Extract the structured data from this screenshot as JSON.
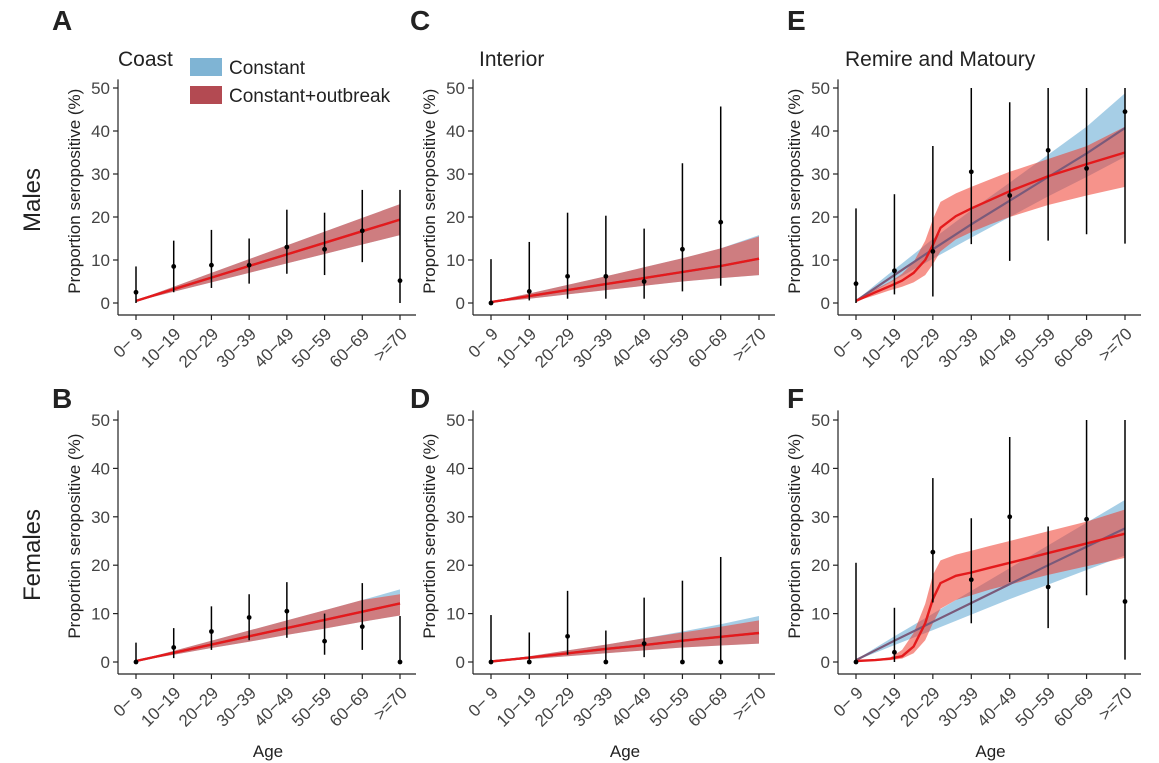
{
  "figure": {
    "row_labels": [
      "Males",
      "Females"
    ],
    "legend": [
      {
        "label": "Constant",
        "color": "#7fb4d4"
      },
      {
        "label": "Constant+outbreak",
        "color": "#b34a52"
      }
    ],
    "ylabel": "Proportion seropositive (%)",
    "xlabel": "Age"
  },
  "colors": {
    "constant_band": "#6baed6",
    "outbreak_band": "#ef3b2c",
    "outbreak_line": "#e41a1c",
    "constant_line": "#7a5a7a",
    "points": "#000000"
  },
  "chart_data": [
    {
      "panel": "A",
      "title": "Coast",
      "row": "Males",
      "type": "line",
      "categories": [
        "0− 9",
        "10−19",
        "20−29",
        "30−39",
        "40−49",
        "50−59",
        "60−69",
        ">=70"
      ],
      "ylim": [
        0,
        52
      ],
      "yticks": [
        0,
        10,
        20,
        30,
        40,
        50
      ],
      "observed": [
        {
          "y": 2.5,
          "lo": 0,
          "hi": 8.5
        },
        {
          "y": 8.5,
          "lo": 2.5,
          "hi": 14.5
        },
        {
          "y": 8.8,
          "lo": 3.5,
          "hi": 17
        },
        {
          "y": 8.8,
          "lo": 4.5,
          "hi": 15
        },
        {
          "y": 13,
          "lo": 6.8,
          "hi": 21.7
        },
        {
          "y": 12.5,
          "lo": 6.5,
          "hi": 21
        },
        {
          "y": 16.8,
          "lo": 9.5,
          "hi": 26.3
        },
        {
          "y": 5.2,
          "lo": 0,
          "hi": 26.3
        }
      ],
      "constant": {
        "fit": [
          0.5,
          3.2,
          5.9,
          8.6,
          11.3,
          14.0,
          16.7,
          19.4
        ],
        "lo": [
          0.4,
          2.6,
          4.8,
          7.0,
          9.2,
          11.4,
          13.6,
          15.8
        ],
        "hi": [
          0.6,
          3.8,
          7.0,
          10.2,
          13.4,
          16.6,
          19.8,
          23.0
        ]
      },
      "outbreak": {
        "fit": [
          0.5,
          3.2,
          5.9,
          8.6,
          11.3,
          14.0,
          16.7,
          19.4
        ],
        "lo": [
          0.4,
          2.6,
          4.8,
          7.0,
          9.2,
          11.4,
          13.6,
          15.8
        ],
        "hi": [
          0.6,
          3.8,
          7.0,
          10.2,
          13.4,
          16.6,
          19.8,
          23.0
        ]
      }
    },
    {
      "panel": "B",
      "title": "",
      "row": "Females",
      "type": "line",
      "categories": [
        "0− 9",
        "10−19",
        "20−29",
        "30−39",
        "40−49",
        "50−59",
        "60−69",
        ">=70"
      ],
      "ylim": [
        0,
        52
      ],
      "yticks": [
        0,
        10,
        20,
        30,
        40,
        50
      ],
      "observed": [
        {
          "y": 0,
          "lo": 0,
          "hi": 4
        },
        {
          "y": 3,
          "lo": 0.8,
          "hi": 7
        },
        {
          "y": 6.3,
          "lo": 2.5,
          "hi": 11.5
        },
        {
          "y": 9.2,
          "lo": 4.5,
          "hi": 14
        },
        {
          "y": 10.5,
          "lo": 5,
          "hi": 16.5
        },
        {
          "y": 4.3,
          "lo": 1.5,
          "hi": 10
        },
        {
          "y": 7.3,
          "lo": 2.5,
          "hi": 16.3
        },
        {
          "y": 0,
          "lo": 0,
          "hi": 9.5
        }
      ],
      "constant": {
        "fit": [
          0.2,
          1.9,
          3.6,
          5.3,
          7.0,
          8.7,
          10.4,
          12.1
        ],
        "lo": [
          0.15,
          1.5,
          2.9,
          4.2,
          5.6,
          6.9,
          8.3,
          9.6
        ],
        "hi": [
          0.25,
          2.3,
          4.4,
          6.5,
          8.6,
          10.7,
          12.8,
          15.0
        ]
      },
      "outbreak": {
        "fit": [
          0.2,
          1.9,
          3.6,
          5.3,
          7.0,
          8.7,
          10.4,
          12.1
        ],
        "lo": [
          0.15,
          1.5,
          2.9,
          4.2,
          5.6,
          6.9,
          8.3,
          9.6
        ],
        "hi": [
          0.25,
          2.3,
          4.4,
          6.5,
          8.6,
          10.7,
          12.8,
          14.0
        ]
      }
    },
    {
      "panel": "C",
      "title": "Interior",
      "row": "Males",
      "type": "line",
      "categories": [
        "0− 9",
        "10−19",
        "20−29",
        "30−39",
        "40−49",
        "50−59",
        "60−69",
        ">=70"
      ],
      "ylim": [
        0,
        52
      ],
      "yticks": [
        0,
        10,
        20,
        30,
        40,
        50
      ],
      "observed": [
        {
          "y": 0,
          "lo": 0,
          "hi": 10.2
        },
        {
          "y": 2.7,
          "lo": 0.6,
          "hi": 14.2
        },
        {
          "y": 6.2,
          "lo": 1,
          "hi": 21
        },
        {
          "y": 6.2,
          "lo": 1,
          "hi": 20.3
        },
        {
          "y": 5,
          "lo": 1,
          "hi": 17.3
        },
        {
          "y": 12.5,
          "lo": 2.7,
          "hi": 32.5
        },
        {
          "y": 18.8,
          "lo": 4,
          "hi": 45.7
        },
        {
          "y": 0,
          "lo": 0,
          "hi": 0
        }
      ],
      "constant": {
        "fit": [
          0.2,
          1.6,
          3.0,
          4.4,
          5.8,
          7.2,
          8.6,
          10.3
        ],
        "lo": [
          0.1,
          1.0,
          2.0,
          3.0,
          4.0,
          5.0,
          5.8,
          6.5
        ],
        "hi": [
          0.3,
          2.2,
          4.2,
          6.2,
          8.3,
          10.4,
          12.7,
          15.8
        ]
      },
      "outbreak": {
        "fit": [
          0.2,
          1.6,
          3.0,
          4.4,
          5.8,
          7.2,
          8.6,
          10.3
        ],
        "lo": [
          0.1,
          1.0,
          2.0,
          3.0,
          4.0,
          5.0,
          5.8,
          6.5
        ],
        "hi": [
          0.3,
          2.2,
          4.2,
          6.2,
          8.3,
          10.4,
          12.7,
          15.5
        ]
      }
    },
    {
      "panel": "D",
      "title": "",
      "row": "Females",
      "type": "line",
      "categories": [
        "0− 9",
        "10−19",
        "20−29",
        "30−39",
        "40−49",
        "50−59",
        "60−69",
        ">=70"
      ],
      "ylim": [
        0,
        52
      ],
      "yticks": [
        0,
        10,
        20,
        30,
        40,
        50
      ],
      "observed": [
        {
          "y": 0,
          "lo": 0,
          "hi": 9.7
        },
        {
          "y": 0,
          "lo": 0,
          "hi": 6.1
        },
        {
          "y": 5.3,
          "lo": 1.5,
          "hi": 14.7
        },
        {
          "y": 0,
          "lo": 0,
          "hi": 6.5
        },
        {
          "y": 3.8,
          "lo": 1,
          "hi": 13.3
        },
        {
          "y": 0,
          "lo": 0,
          "hi": 16.8
        },
        {
          "y": 0,
          "lo": 0,
          "hi": 21.7
        },
        {
          "y": 0,
          "lo": 0,
          "hi": 0
        }
      ],
      "constant": {
        "fit": [
          0.1,
          0.9,
          1.8,
          2.7,
          3.5,
          4.4,
          5.2,
          6.0
        ],
        "lo": [
          0.05,
          0.6,
          1.2,
          1.8,
          2.4,
          3.0,
          3.4,
          3.8
        ],
        "hi": [
          0.15,
          1.2,
          2.4,
          3.6,
          4.9,
          6.3,
          7.8,
          9.5
        ]
      },
      "outbreak": {
        "fit": [
          0.1,
          0.9,
          1.8,
          2.7,
          3.5,
          4.4,
          5.2,
          6.0
        ],
        "lo": [
          0.05,
          0.6,
          1.2,
          1.8,
          2.4,
          3.0,
          3.4,
          3.8
        ],
        "hi": [
          0.15,
          1.2,
          2.4,
          3.6,
          4.9,
          6.1,
          7.3,
          8.6
        ]
      }
    },
    {
      "panel": "E",
      "title": "Remire and Matoury",
      "row": "Males",
      "type": "line",
      "categories": [
        "0− 9",
        "10−19",
        "20−29",
        "30−39",
        "40−49",
        "50−59",
        "60−69",
        ">=70"
      ],
      "ylim": [
        0,
        52
      ],
      "yticks": [
        0,
        10,
        20,
        30,
        40,
        50
      ],
      "observed": [
        {
          "y": 4.5,
          "lo": 0,
          "hi": 22
        },
        {
          "y": 7.5,
          "lo": 2,
          "hi": 25.3
        },
        {
          "y": 12,
          "lo": 1.5,
          "hi": 36.5
        },
        {
          "y": 30.5,
          "lo": 13.7,
          "hi": 50
        },
        {
          "y": 25,
          "lo": 9.8,
          "hi": 46.7
        },
        {
          "y": 35.5,
          "lo": 14.5,
          "hi": 50
        },
        {
          "y": 31.3,
          "lo": 16,
          "hi": 50
        },
        {
          "y": 44.5,
          "lo": 13.8,
          "hi": 50
        }
      ],
      "constant": {
        "fit": [
          0.5,
          6.5,
          12.5,
          18.3,
          23.8,
          29.3,
          34.8,
          40.7
        ],
        "lo": [
          0.4,
          5.3,
          10.3,
          15.2,
          20.0,
          24.8,
          29.3,
          34.0
        ],
        "hi": [
          0.6,
          7.8,
          14.9,
          21.6,
          28.0,
          34.5,
          41.0,
          48.8
        ]
      },
      "outbreak": {
        "x": [
          0,
          0.5,
          0.9,
          1.2,
          1.5,
          1.8,
          2.0,
          2.2,
          2.6,
          3.0,
          3.5,
          4.0,
          5.0,
          6.0,
          7.0
        ],
        "fit": [
          0.5,
          2.5,
          4.0,
          5.2,
          7.0,
          10.0,
          13.5,
          17.5,
          20.2,
          22.0,
          24.0,
          26.0,
          29.5,
          32.3,
          35.0
        ],
        "lo": [
          0.4,
          1.8,
          3.0,
          3.8,
          4.8,
          6.5,
          9.0,
          12.0,
          14.8,
          16.5,
          18.3,
          20.0,
          22.8,
          25.0,
          27.0
        ],
        "hi": [
          0.6,
          3.2,
          5.0,
          6.8,
          9.5,
          14.5,
          19.5,
          23.5,
          25.5,
          27.0,
          28.8,
          30.5,
          33.5,
          36.5,
          41.0
        ]
      }
    },
    {
      "panel": "F",
      "title": "",
      "row": "Females",
      "type": "line",
      "categories": [
        "0− 9",
        "10−19",
        "20−29",
        "30−39",
        "40−49",
        "50−59",
        "60−69",
        ">=70"
      ],
      "ylim": [
        0,
        52
      ],
      "yticks": [
        0,
        10,
        20,
        30,
        40,
        50
      ],
      "observed": [
        {
          "y": 0,
          "lo": 0,
          "hi": 20.5
        },
        {
          "y": 2,
          "lo": 0,
          "hi": 11.2
        },
        {
          "y": 22.7,
          "lo": 12.3,
          "hi": 38
        },
        {
          "y": 17,
          "lo": 8,
          "hi": 29.7
        },
        {
          "y": 30,
          "lo": 16.5,
          "hi": 46.5
        },
        {
          "y": 15.5,
          "lo": 7,
          "hi": 28
        },
        {
          "y": 29.5,
          "lo": 13.8,
          "hi": 50
        },
        {
          "y": 12.5,
          "lo": 0.5,
          "hi": 50
        }
      ],
      "constant": {
        "fit": [
          0.4,
          4.4,
          8.3,
          12.2,
          16.1,
          20.0,
          23.8,
          27.6
        ],
        "lo": [
          0.3,
          3.5,
          6.6,
          9.8,
          13.0,
          16.0,
          19.0,
          22.0
        ],
        "hi": [
          0.5,
          5.3,
          10.0,
          14.7,
          19.4,
          24.1,
          28.8,
          33.5
        ]
      },
      "outbreak": {
        "x": [
          0,
          0.5,
          0.9,
          1.2,
          1.5,
          1.8,
          2.0,
          2.2,
          2.6,
          3.0,
          3.5,
          4.0,
          5.0,
          6.0,
          7.0
        ],
        "fit": [
          0.2,
          0.4,
          0.7,
          1.2,
          3.2,
          8.0,
          13.0,
          16.3,
          17.8,
          18.5,
          19.5,
          20.5,
          22.5,
          24.5,
          26.5
        ],
        "lo": [
          0.1,
          0.2,
          0.4,
          0.7,
          1.8,
          4.5,
          8.0,
          11.0,
          12.8,
          13.8,
          15.0,
          16.0,
          18.0,
          19.8,
          21.5
        ],
        "hi": [
          0.3,
          0.6,
          1.0,
          2.5,
          6.0,
          12.0,
          18.0,
          21.0,
          22.2,
          23.0,
          24.0,
          25.0,
          27.0,
          29.0,
          31.5
        ]
      }
    }
  ]
}
